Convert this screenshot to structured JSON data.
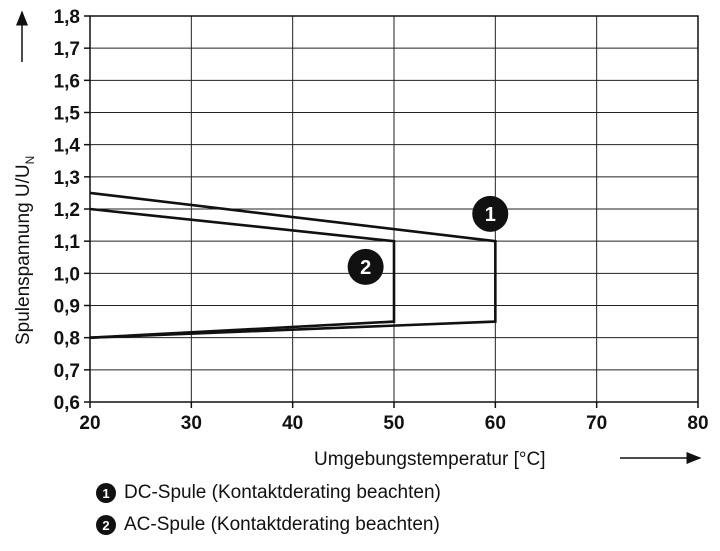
{
  "chart_data": {
    "type": "line",
    "xlabel": "Umgebungstemperatur [°C]",
    "ylabel": "Spulenspannung U/U",
    "ylabel_sub": "N",
    "xlim": [
      20,
      80
    ],
    "ylim": [
      0.6,
      1.8
    ],
    "x_ticks": [
      "20",
      "30",
      "40",
      "50",
      "60",
      "70",
      "80"
    ],
    "y_ticks": [
      "0,6",
      "0,7",
      "0,8",
      "0,9",
      "1,0",
      "1,1",
      "1,2",
      "1,3",
      "1,4",
      "1,5",
      "1,6",
      "1,7",
      "1,8"
    ],
    "grid": true,
    "series": [
      {
        "name": "1",
        "x": [
          20,
          60,
          60,
          20
        ],
        "y": [
          1.25,
          1.1,
          0.85,
          0.8
        ]
      },
      {
        "name": "2",
        "x": [
          20,
          50,
          50,
          20
        ],
        "y": [
          1.2,
          1.1,
          0.85,
          0.8
        ]
      }
    ],
    "annotations": [
      {
        "label": "1",
        "x": 59.5,
        "y": 1.185
      },
      {
        "label": "2",
        "x": 47.2,
        "y": 1.02
      }
    ]
  },
  "legend": [
    {
      "marker": "1",
      "text": "DC-Spule (Kontaktderating beachten)"
    },
    {
      "marker": "2",
      "text": "AC-Spule (Kontaktderating beachten)"
    }
  ]
}
